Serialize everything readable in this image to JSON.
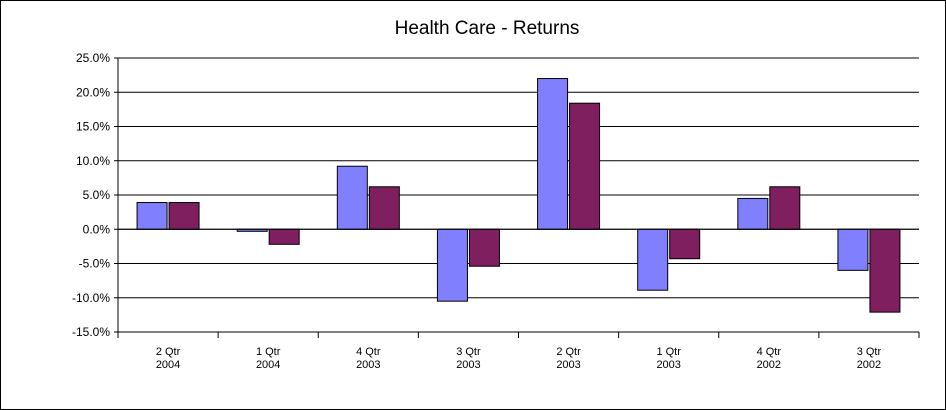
{
  "chart_data": {
    "type": "bar",
    "title": "Health Care  -  Returns",
    "xlabel": "",
    "ylabel": "",
    "categories": [
      [
        "2 Qtr",
        "2004"
      ],
      [
        "1 Qtr",
        "2004"
      ],
      [
        "4 Qtr",
        "2003"
      ],
      [
        "3 Qtr",
        "2003"
      ],
      [
        "2 Qtr",
        "2003"
      ],
      [
        "1 Qtr",
        "2003"
      ],
      [
        "4 Qtr",
        "2002"
      ],
      [
        "3 Qtr",
        "2002"
      ]
    ],
    "series": [
      {
        "color": "#8080ff",
        "values": [
          3.9,
          -0.3,
          9.2,
          -10.5,
          22.0,
          -8.9,
          4.5,
          -6.0
        ]
      },
      {
        "color": "#7f1f5f",
        "values": [
          3.9,
          -2.2,
          6.2,
          -5.4,
          18.4,
          -4.3,
          6.2,
          -12.1
        ]
      }
    ],
    "ylim": [
      -15,
      25
    ],
    "yticks": [
      25,
      20,
      15,
      10,
      5,
      0,
      -5,
      -10,
      -15
    ],
    "ytick_labels": [
      "25.0%",
      "20.0%",
      "15.0%",
      "10.0%",
      "5.0%",
      "0.0%",
      "-5.0%",
      "-10.0%",
      "-15.0%"
    ],
    "grid": true,
    "legend": "none"
  }
}
